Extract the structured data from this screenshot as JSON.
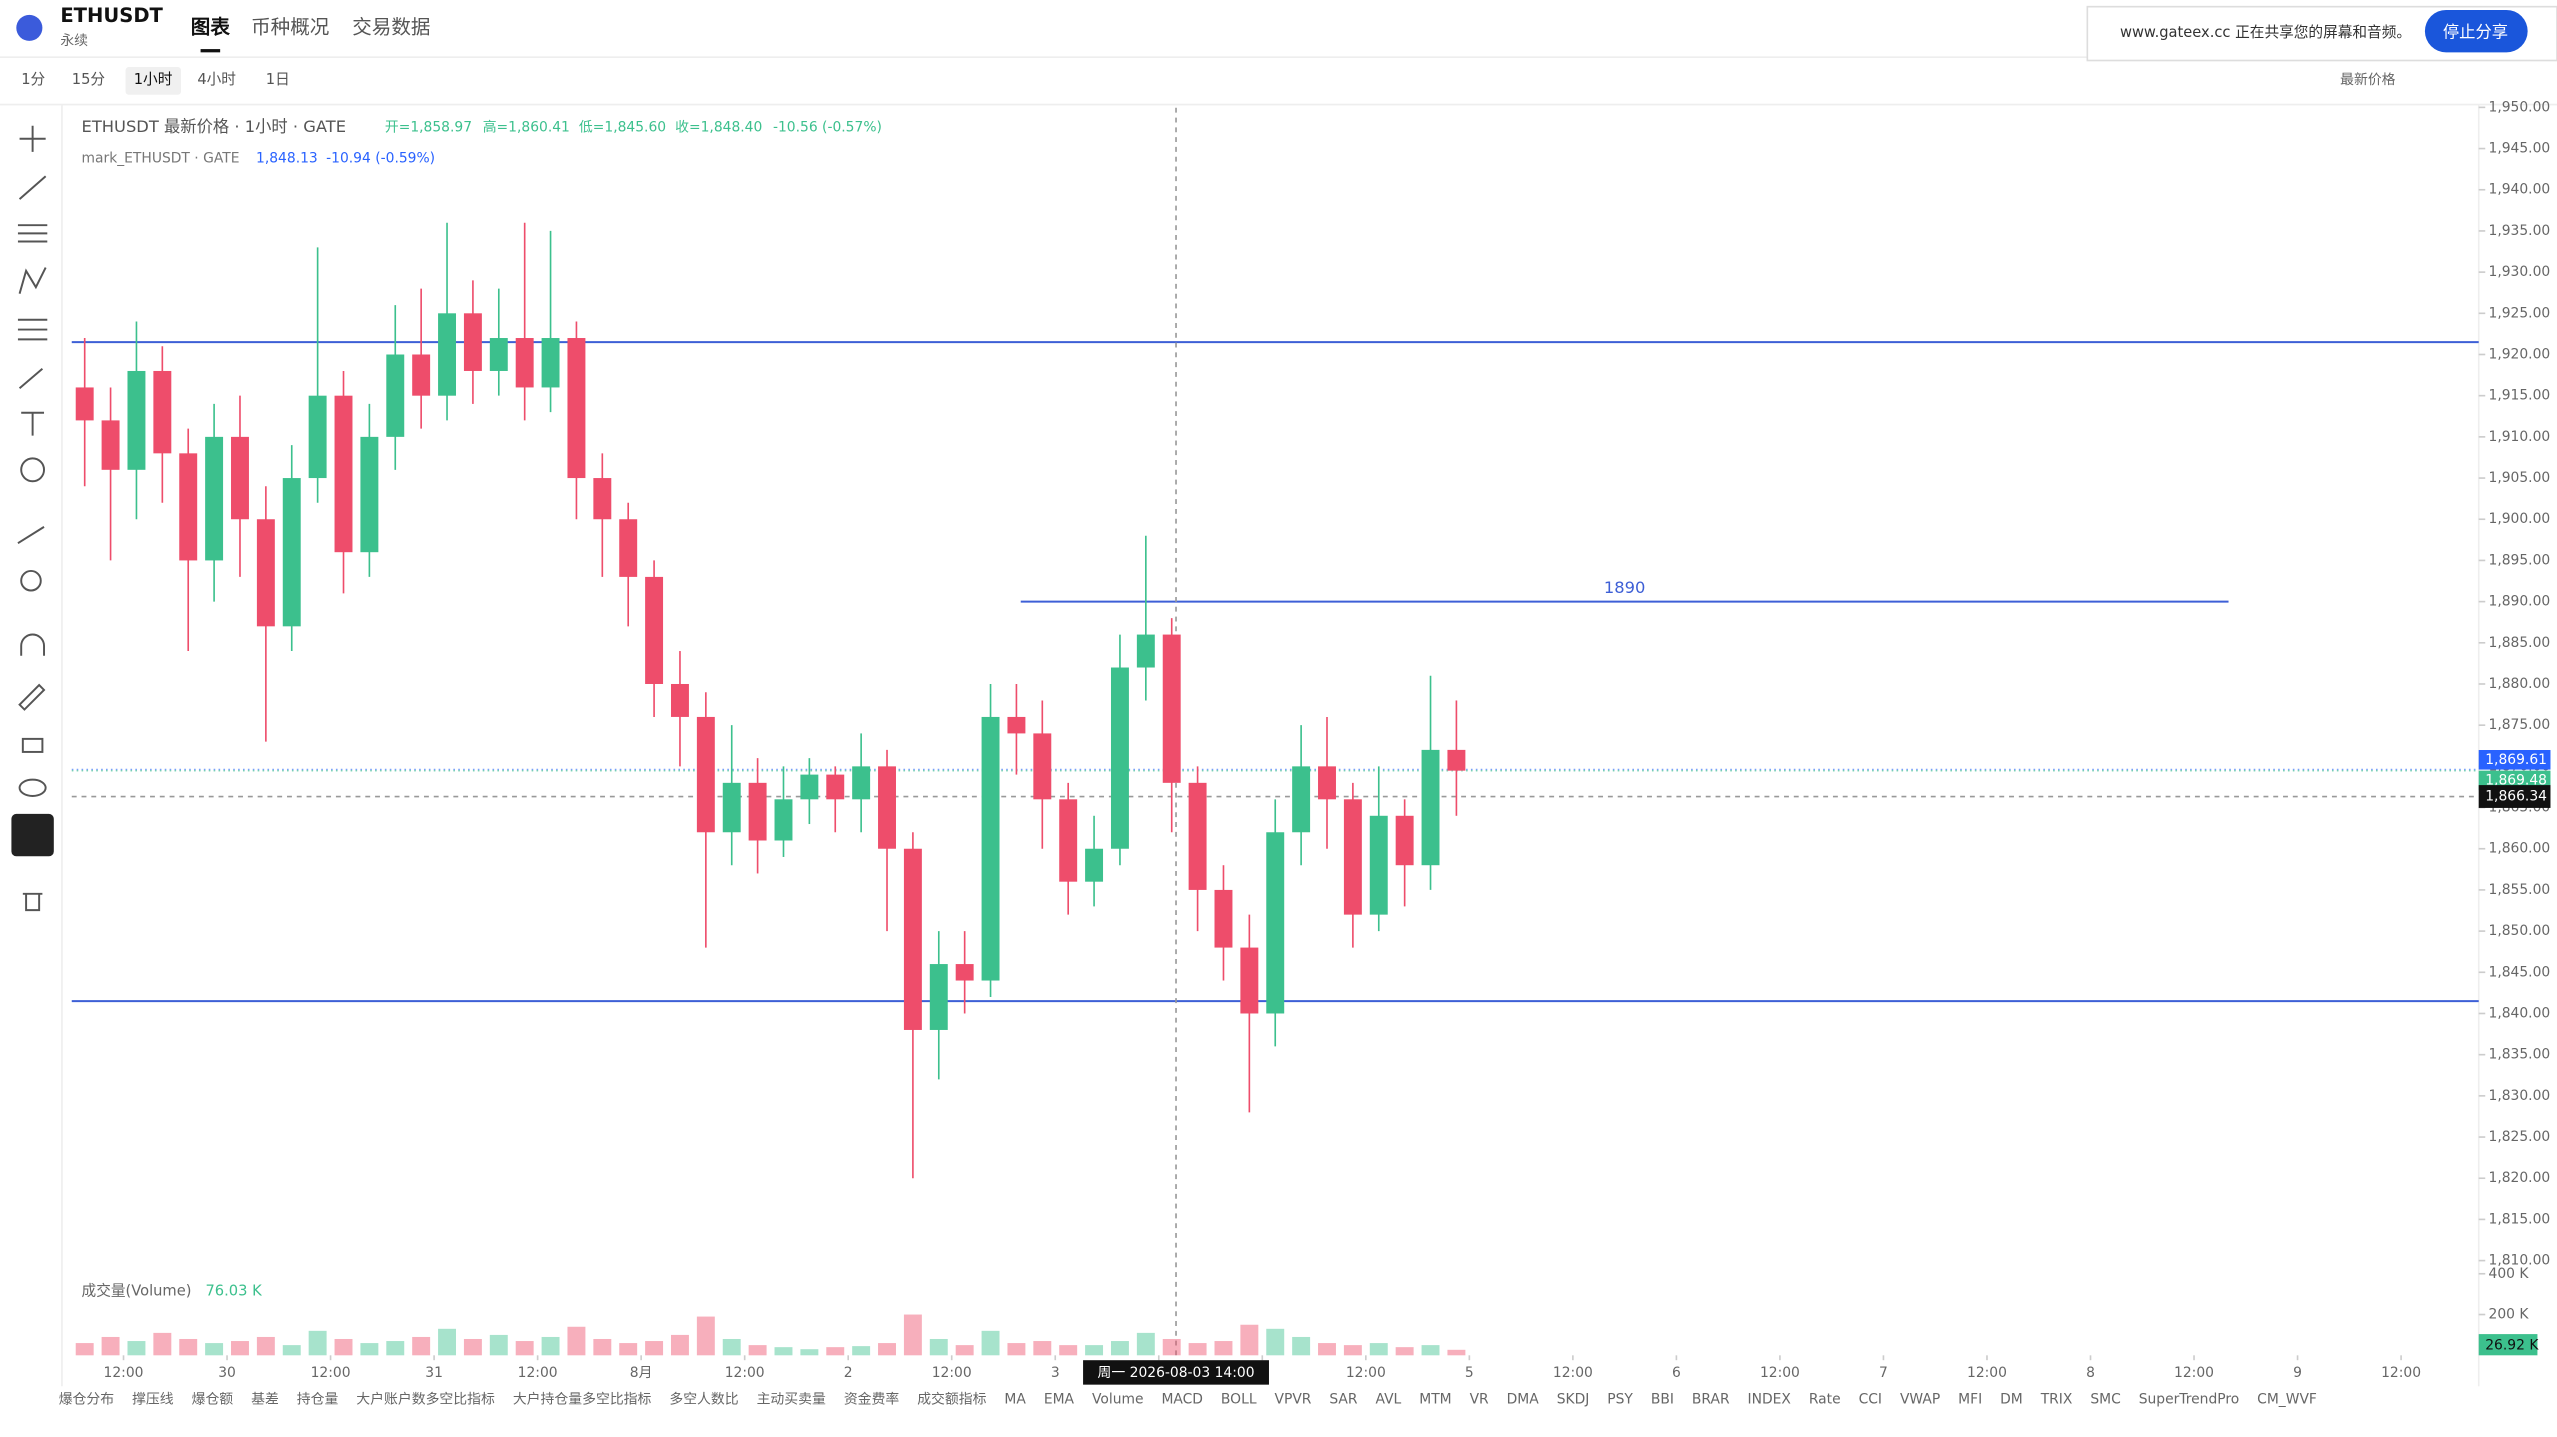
{
  "header": {
    "symbol": "ETHUSDT",
    "subtitle": "永续",
    "tabs": [
      "图表",
      "币种概况",
      "交易数据"
    ]
  },
  "toolbar": {
    "intervals": [
      "1分",
      "15分",
      "1小时",
      "4小时",
      "1日"
    ],
    "price_type": "最新价格"
  },
  "share": {
    "text": "www.gateex.cc 正在共享您的屏幕和音频。",
    "button": "停止分享"
  },
  "indicators": [
    "爆仓分布",
    "撑压线",
    "爆仓额",
    "基差",
    "持仓量",
    "大户账户数多空比指标",
    "大户持仓量多空比指标",
    "多空人数比",
    "主动买卖量",
    "资金费率",
    "成交额指标",
    "MA",
    "EMA",
    "Volume",
    "MACD",
    "BOLL",
    "VPVR",
    "SAR",
    "AVL",
    "MTM",
    "VR",
    "DMA",
    "SKDJ",
    "PSY",
    "BBI",
    "BRAR",
    "INDEX",
    "Rate",
    "CCI",
    "VWAP",
    "MFI",
    "DM",
    "TRIX",
    "SMC",
    "SuperTrendPro",
    "CM_WVF"
  ],
  "chart_data": {
    "type": "candlestick",
    "legend": {
      "title": "ETHUSDT 最新价格 · 1小时 · GATE",
      "open": "开=1,858.97",
      "high": "高=1,860.41",
      "low": "低=1,845.60",
      "close": "收=1,848.40",
      "change": "-10.56 (-0.57%)",
      "mark_title": "mark_ETHUSDT · GATE",
      "mark_value": "1,848.13",
      "mark_change": "-10.94 (-0.59%)"
    },
    "up_color": "#3cc08d",
    "down_color": "#ee4d6b",
    "x": [
      1.5,
      4.5,
      7.5,
      10.5,
      13.5,
      16.5,
      19.5,
      22.5,
      25.5,
      28.5,
      31.5,
      34.5,
      37.5,
      40.5,
      43.5,
      46.5,
      49.5,
      52.5,
      55.5,
      58.5,
      61.5,
      64.5,
      67.5,
      70.5,
      73.5,
      76.5,
      79.5,
      82.5,
      85.5,
      88.5,
      91.5,
      94.5,
      97.5,
      100.5,
      103.5,
      106.5,
      109.5,
      112.5,
      115.5,
      118.5,
      121.5,
      124.5,
      127.5,
      130.5,
      133.5,
      136.5,
      139.5,
      142.5,
      145.5,
      148.5,
      151.5,
      154.5,
      157.5,
      160.5
    ],
    "open": [
      1916,
      1912,
      1906,
      1918,
      1908,
      1895,
      1910,
      1900,
      1887,
      1905,
      1915,
      1896,
      1910,
      1920,
      1915,
      1925,
      1918,
      1922,
      1916,
      1922,
      1905,
      1900,
      1893,
      1880,
      1876,
      1862,
      1868,
      1861,
      1866,
      1869,
      1866,
      1870,
      1860,
      1838,
      1846,
      1844,
      1876,
      1874,
      1866,
      1856,
      1860,
      1882,
      1886,
      1868,
      1855,
      1848,
      1840,
      1862,
      1870,
      1866,
      1852,
      1864,
      1858,
      1872
    ],
    "high": [
      1922,
      1916,
      1924,
      1921,
      1911,
      1914,
      1915,
      1904,
      1909,
      1933,
      1918,
      1914,
      1926,
      1928,
      1936,
      1929,
      1928,
      1936,
      1935,
      1924,
      1908,
      1902,
      1895,
      1884,
      1879,
      1875,
      1871,
      1870,
      1871,
      1870,
      1874,
      1872,
      1862,
      1850,
      1850,
      1880,
      1880,
      1878,
      1868,
      1864,
      1886,
      1898,
      1888,
      1870,
      1858,
      1852,
      1866,
      1875,
      1876,
      1868,
      1870,
      1866,
      1881,
      1878
    ],
    "low": [
      1904,
      1895,
      1900,
      1902,
      1884,
      1890,
      1893,
      1873,
      1884,
      1902,
      1891,
      1893,
      1906,
      1911,
      1912,
      1914,
      1915,
      1912,
      1913,
      1900,
      1893,
      1887,
      1876,
      1870,
      1848,
      1858,
      1857,
      1859,
      1863,
      1862,
      1862,
      1850,
      1820,
      1832,
      1840,
      1842,
      1869,
      1860,
      1852,
      1853,
      1858,
      1878,
      1862,
      1850,
      1844,
      1828,
      1836,
      1858,
      1860,
      1848,
      1850,
      1853,
      1855,
      1864
    ],
    "close": [
      1912,
      1906,
      1918,
      1908,
      1895,
      1910,
      1900,
      1887,
      1905,
      1915,
      1896,
      1910,
      1920,
      1915,
      1925,
      1918,
      1922,
      1916,
      1922,
      1905,
      1900,
      1893,
      1880,
      1876,
      1862,
      1868,
      1861,
      1866,
      1869,
      1866,
      1870,
      1860,
      1838,
      1846,
      1844,
      1876,
      1874,
      1866,
      1856,
      1860,
      1882,
      1886,
      1868,
      1855,
      1848,
      1840,
      1862,
      1870,
      1866,
      1852,
      1864,
      1858,
      1872,
      1869.48
    ],
    "xlim": [
      0,
      279
    ],
    "xticks": [
      {
        "value": 6,
        "label": "12:00"
      },
      {
        "value": 18,
        "label": "30"
      },
      {
        "value": 30,
        "label": "12:00"
      },
      {
        "value": 42,
        "label": "31"
      },
      {
        "value": 54,
        "label": "12:00"
      },
      {
        "value": 66,
        "label": "8月"
      },
      {
        "value": 78,
        "label": "12:00"
      },
      {
        "value": 90,
        "label": "2"
      },
      {
        "value": 102,
        "label": "12:00"
      },
      {
        "value": 114,
        "label": "3"
      },
      {
        "value": 126,
        "label": "12:00"
      },
      {
        "value": 138,
        "label": "4"
      },
      {
        "value": 150,
        "label": "12:00"
      },
      {
        "value": 162,
        "label": "5"
      },
      {
        "value": 174,
        "label": "12:00"
      },
      {
        "value": 186,
        "label": "6"
      },
      {
        "value": 198,
        "label": "12:00"
      },
      {
        "value": 210,
        "label": "7"
      },
      {
        "value": 222,
        "label": "12:00"
      },
      {
        "value": 234,
        "label": "8"
      },
      {
        "value": 246,
        "label": "12:00"
      },
      {
        "value": 258,
        "label": "9"
      },
      {
        "value": 270,
        "label": "12:00"
      }
    ],
    "ylim": [
      1808.6,
      1949.95
    ],
    "yticks": [
      {
        "value": 1810,
        "label": "1,810.00"
      },
      {
        "value": 1815,
        "label": "1,815.00"
      },
      {
        "value": 1820,
        "label": "1,820.00"
      },
      {
        "value": 1825,
        "label": "1,825.00"
      },
      {
        "value": 1830,
        "label": "1,830.00"
      },
      {
        "value": 1835,
        "label": "1,835.00"
      },
      {
        "value": 1840,
        "label": "1,840.00"
      },
      {
        "value": 1845,
        "label": "1,845.00"
      },
      {
        "value": 1850,
        "label": "1,850.00"
      },
      {
        "value": 1855,
        "label": "1,855.00"
      },
      {
        "value": 1860,
        "label": "1,860.00"
      },
      {
        "value": 1865,
        "label": "1,865.00"
      },
      {
        "value": 1870,
        "label": "1,870.00"
      },
      {
        "value": 1875,
        "label": "1,875.00"
      },
      {
        "value": 1880,
        "label": "1,880.00"
      },
      {
        "value": 1885,
        "label": "1,885.00"
      },
      {
        "value": 1890,
        "label": "1,890.00"
      },
      {
        "value": 1895,
        "label": "1,895.00"
      },
      {
        "value": 1900,
        "label": "1,900.00"
      },
      {
        "value": 1905,
        "label": "1,905.00"
      },
      {
        "value": 1910,
        "label": "1,910.00"
      },
      {
        "value": 1915,
        "label": "1,915.00"
      },
      {
        "value": 1920,
        "label": "1,920.00"
      },
      {
        "value": 1925,
        "label": "1,925.00"
      },
      {
        "value": 1930,
        "label": "1,930.00"
      },
      {
        "value": 1935,
        "label": "1,935.00"
      },
      {
        "value": 1940,
        "label": "1,940.00"
      },
      {
        "value": 1945,
        "label": "1,945.00"
      },
      {
        "value": 1950,
        "label": "1,950.00"
      }
    ],
    "volume": {
      "name": "成交量(Volume)",
      "current": "76.03 K",
      "last_label": "26.92 K",
      "values": [
        60,
        90,
        70,
        110,
        80,
        60,
        70,
        90,
        50,
        120,
        80,
        60,
        70,
        90,
        130,
        80,
        100,
        70,
        90,
        140,
        80,
        60,
        70,
        100,
        190,
        80,
        50,
        40,
        30,
        40,
        45,
        60,
        200,
        80,
        50,
        120,
        60,
        70,
        50,
        50,
        70,
        110,
        80,
        60,
        70,
        150,
        130,
        90,
        60,
        50,
        60,
        40,
        50,
        26.92
      ]
    },
    "y2lim": [
      0,
      448
    ],
    "y2ticks": [
      {
        "value": 200,
        "label": "200 K"
      },
      {
        "value": 400,
        "label": "400 K"
      }
    ],
    "drawn_lines": [
      {
        "value": 1921.5,
        "color": "#3d5fd6"
      },
      {
        "value": 1841.5,
        "color": "#3d5fd6"
      },
      {
        "value": 1890,
        "label": "1890",
        "x": [
          110,
          250
        ],
        "color": "#3d5fd6"
      }
    ],
    "price_lines": [
      {
        "value": 1869.61,
        "label": "1,869.61",
        "color": "#2962ff"
      },
      {
        "value": 1869.48,
        "label": "1,869.48",
        "color": "#3cc08d"
      }
    ],
    "crosshair": {
      "x": 128,
      "price": 1866.34,
      "price_label": "1,866.34",
      "time_label": "周一 2026-08-03  14:00"
    }
  }
}
